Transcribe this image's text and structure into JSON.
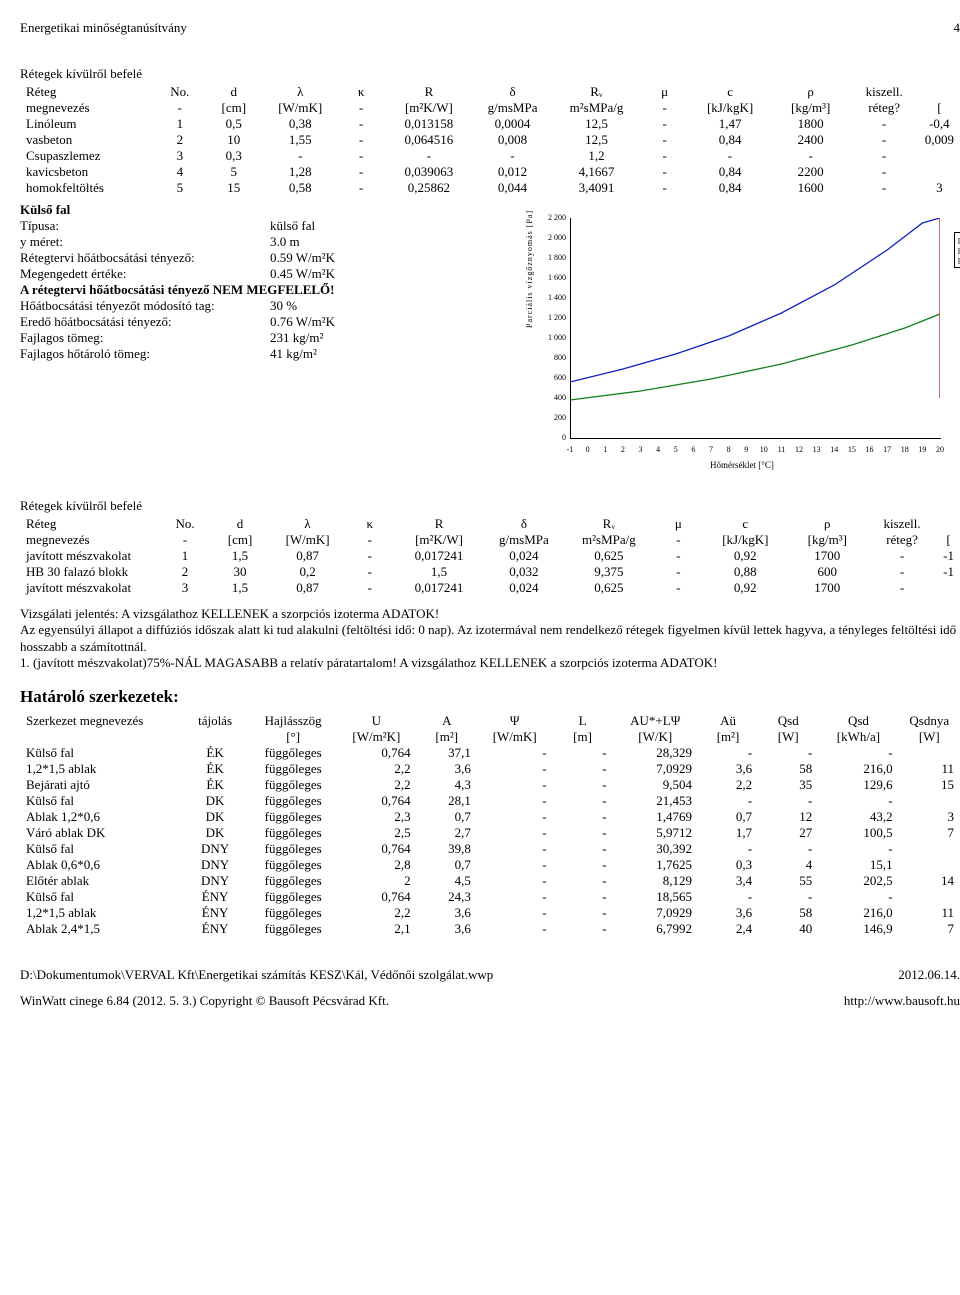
{
  "header": {
    "title": "Energetikai minőségtanúsítvány",
    "page": "4"
  },
  "layers1": {
    "title": "Rétegek kívülről befelé",
    "head1": [
      "Réteg",
      "No.",
      "d",
      "λ",
      "κ",
      "R",
      "δ",
      "Rᵥ",
      "μ",
      "c",
      "ρ",
      "kiszell."
    ],
    "head2": [
      "megnevezés",
      "-",
      "[cm]",
      "[W/mK]",
      "-",
      "[m²K/W]",
      "g/msMPa",
      "m²sMPa/g",
      "-",
      "[kJ/kgK]",
      "[kg/m³]",
      "réteg?",
      "["
    ],
    "rows": [
      [
        "Linóleum",
        "1",
        "0,5",
        "0,38",
        "-",
        "0,013158",
        "0,0004",
        "12,5",
        "-",
        "1,47",
        "1800",
        "-",
        "-0,4"
      ],
      [
        "vasbeton",
        "2",
        "10",
        "1,55",
        "-",
        "0,064516",
        "0,008",
        "12,5",
        "-",
        "0,84",
        "2400",
        "-",
        "0,009"
      ],
      [
        "Csupaszlemez",
        "3",
        "0,3",
        "-",
        "-",
        "-",
        "-",
        "1,2",
        "-",
        "-",
        "-",
        "-",
        ""
      ],
      [
        "kavicsbeton",
        "4",
        "5",
        "1,28",
        "-",
        "0,039063",
        "0,012",
        "4,1667",
        "-",
        "0,84",
        "2200",
        "-",
        ""
      ],
      [
        "homokfeltöltés",
        "5",
        "15",
        "0,58",
        "-",
        "0,25862",
        "0,044",
        "3,4091",
        "-",
        "0,84",
        "1600",
        "-",
        "3"
      ]
    ]
  },
  "wall": {
    "title": "Külső fal",
    "lines": [
      [
        "Típusa:",
        "külső fal"
      ],
      [
        "y méret:",
        "3.0 m"
      ],
      [
        "Rétegtervi hőátbocsátási tényező:",
        "0.59 W/m²K"
      ],
      [
        "Megengedett értéke:",
        "0.45 W/m²K"
      ]
    ],
    "warn": "A rétegtervi hőátbocsátási tényező NEM MEGFELELŐ!",
    "lines2": [
      [
        "Hőátbocsátási tényezőt módosító tag:",
        "30 %"
      ],
      [
        "Eredő hőátbocsátási tényező:",
        "0.76 W/m²K"
      ],
      [
        "Fajlagos tömeg:",
        "231 kg/m²"
      ],
      [
        "Fajlagos hőtároló tömeg:",
        "41 kg/m²"
      ]
    ]
  },
  "chart": {
    "ylabel": "Parciális vízgőznyomás [Pa]",
    "xlabel": "Hőmérséklet [°C]",
    "yticks": [
      "0",
      "200",
      "400",
      "600",
      "800",
      "1 000",
      "1 200",
      "1 400",
      "1 600",
      "1 800",
      "2 000",
      "2 200"
    ],
    "xticks": [
      "-1",
      "0",
      "1",
      "2",
      "3",
      "4",
      "5",
      "6",
      "7",
      "8",
      "9",
      "10",
      "11",
      "12",
      "13",
      "14",
      "15",
      "16",
      "17",
      "18",
      "19",
      "20"
    ],
    "xlim": [
      -1,
      20
    ],
    "ylim": [
      0,
      2200
    ],
    "legend": [
      "p",
      "p",
      "p"
    ],
    "series": {
      "blue": {
        "color": "#1020c0",
        "pts": [
          [
            -1,
            560
          ],
          [
            2,
            690
          ],
          [
            5,
            840
          ],
          [
            8,
            1020
          ],
          [
            11,
            1250
          ],
          [
            14,
            1530
          ],
          [
            17,
            1880
          ],
          [
            19,
            2150
          ],
          [
            20,
            2200
          ]
        ]
      },
      "green": {
        "color": "#108020",
        "pts": [
          [
            -1,
            380
          ],
          [
            3,
            470
          ],
          [
            7,
            590
          ],
          [
            11,
            740
          ],
          [
            15,
            930
          ],
          [
            18,
            1100
          ],
          [
            20,
            1240
          ]
        ]
      },
      "red": {
        "color": "#c02020",
        "pts": [
          [
            20,
            400
          ],
          [
            20,
            2200
          ]
        ]
      }
    }
  },
  "layers2": {
    "title": "Rétegek kívülről befelé",
    "head1": [
      "Réteg",
      "No.",
      "d",
      "λ",
      "κ",
      "R",
      "δ",
      "Rᵥ",
      "μ",
      "c",
      "ρ",
      "kiszell."
    ],
    "head2": [
      "megnevezés",
      "-",
      "[cm]",
      "[W/mK]",
      "-",
      "[m²K/W]",
      "g/msMPa",
      "m²sMPa/g",
      "-",
      "[kJ/kgK]",
      "[kg/m³]",
      "réteg?",
      "["
    ],
    "rows": [
      [
        "javított mészvakolat",
        "1",
        "1,5",
        "0,87",
        "-",
        "0,017241",
        "0,024",
        "0,625",
        "-",
        "0,92",
        "1700",
        "-",
        "-1"
      ],
      [
        "HB 30 falazó blokk",
        "2",
        "30",
        "0,2",
        "-",
        "1,5",
        "0,032",
        "9,375",
        "-",
        "0,88",
        "600",
        "-",
        "-1"
      ],
      [
        "javított mészvakolat",
        "3",
        "1,5",
        "0,87",
        "-",
        "0,017241",
        "0,024",
        "0,625",
        "-",
        "0,92",
        "1700",
        "-",
        ""
      ]
    ]
  },
  "report": {
    "p1": "Vizsgálati jelentés: A vizsgálathoz KELLENEK a szorpciós izoterma ADATOK!",
    "p2": "Az egyensúlyi állapot a diffúziós időszak alatt ki tud alakulni (feltöltési idő: 0 nap). Az izotermával nem rendelkező rétegek figyelmen kívül lettek hagyva, a tényleges feltöltési idő hosszabb a számítottnál.",
    "p3": "1. (javított mészvakolat)75%-NÁL MAGASABB a relatív páratartalom! A vizsgálathoz KELLENEK a szorpciós izoterma ADATOK!"
  },
  "struct": {
    "title": "Határoló szerkezetek:",
    "head1": [
      "Szerkezet megnevezés",
      "tájolás",
      "Hajlásszög",
      "U",
      "A",
      "Ψ",
      "L",
      "AU*+LΨ",
      "Aü",
      "Qsd",
      "Qsd",
      "Qsdnya"
    ],
    "head2": [
      "",
      "",
      "[°]",
      "[W/m²K]",
      "[m²]",
      "[W/mK]",
      "[m]",
      "[W/K]",
      "[m²]",
      "[W]",
      "[kWh/a]",
      "[W]"
    ],
    "rows": [
      [
        "Külső fal",
        "ÉK",
        "függőleges",
        "0,764",
        "37,1",
        "-",
        "-",
        "28,329",
        "-",
        "-",
        "-",
        ""
      ],
      [
        "1,2*1,5 ablak",
        "ÉK",
        "függőleges",
        "2,2",
        "3,6",
        "-",
        "-",
        "7,0929",
        "3,6",
        "58",
        "216,0",
        "11"
      ],
      [
        "Bejárati ajtó",
        "ÉK",
        "függőleges",
        "2,2",
        "4,3",
        "-",
        "-",
        "9,504",
        "2,2",
        "35",
        "129,6",
        "15"
      ],
      [
        "Külső fal",
        "DK",
        "függőleges",
        "0,764",
        "28,1",
        "-",
        "-",
        "21,453",
        "-",
        "-",
        "-",
        ""
      ],
      [
        "Ablak 1,2*0,6",
        "DK",
        "függőleges",
        "2,3",
        "0,7",
        "-",
        "-",
        "1,4769",
        "0,7",
        "12",
        "43,2",
        "3"
      ],
      [
        "Váró ablak DK",
        "DK",
        "függőleges",
        "2,5",
        "2,7",
        "-",
        "-",
        "5,9712",
        "1,7",
        "27",
        "100,5",
        "7"
      ],
      [
        "Külső fal",
        "DNY",
        "függőleges",
        "0,764",
        "39,8",
        "-",
        "-",
        "30,392",
        "-",
        "-",
        "-",
        ""
      ],
      [
        "Ablak 0,6*0,6",
        "DNY",
        "függőleges",
        "2,8",
        "0,7",
        "-",
        "-",
        "1,7625",
        "0,3",
        "4",
        "15,1",
        ""
      ],
      [
        "Előtér ablak",
        "DNY",
        "függőleges",
        "2",
        "4,5",
        "-",
        "-",
        "8,129",
        "3,4",
        "55",
        "202,5",
        "14"
      ],
      [
        "Külső fal",
        "ÉNY",
        "függőleges",
        "0,764",
        "24,3",
        "-",
        "-",
        "18,565",
        "-",
        "-",
        "-",
        ""
      ],
      [
        "1,2*1,5 ablak",
        "ÉNY",
        "függőleges",
        "2,2",
        "3,6",
        "-",
        "-",
        "7,0929",
        "3,6",
        "58",
        "216,0",
        "11"
      ],
      [
        "Ablak 2,4*1,5",
        "ÉNY",
        "függőleges",
        "2,1",
        "3,6",
        "-",
        "-",
        "6,7992",
        "2,4",
        "40",
        "146,9",
        "7"
      ]
    ]
  },
  "footer": {
    "path": "D:\\Dokumentumok\\VERVAL Kft\\Energetikai számítás KESZ\\Kál, Védőnői szolgálat.wwp",
    "date": "2012.06.14.",
    "app": "WinWatt cinege 6.84 (2012. 5. 3.) Copyright © Bausoft Pécsvárad Kft.",
    "url": "http://www.bausoft.hu"
  }
}
